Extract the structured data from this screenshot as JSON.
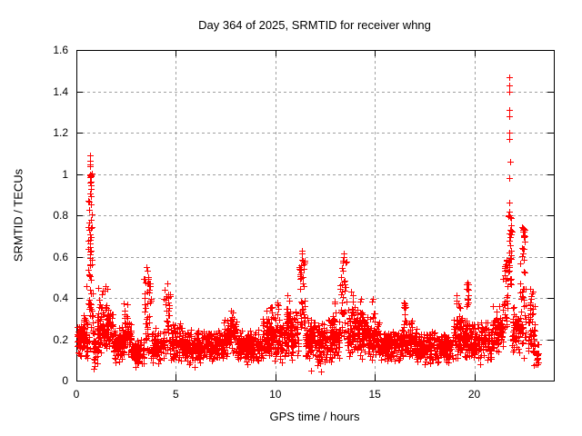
{
  "colors": {
    "marker": "#ff0000",
    "grid": "#a0a0a0",
    "axis": "#000000",
    "background": "#ffffff",
    "text": "#000000"
  },
  "chart_data": {
    "type": "scatter",
    "title": "Day 364 of 2025, SRMTID for receiver whng",
    "xlabel": "GPS time / hours",
    "ylabel": "SRMTID / TECUs",
    "xlim": [
      0,
      24
    ],
    "ylim": [
      0,
      1.6
    ],
    "xticks": [
      0,
      5,
      10,
      15,
      20
    ],
    "xtick_labels": [
      "0",
      "5",
      "10",
      "15",
      "20"
    ],
    "yticks": [
      0,
      0.2,
      0.4,
      0.6,
      0.8,
      1.0,
      1.2,
      1.4,
      1.6
    ],
    "ytick_labels": [
      "0",
      "0.2",
      "0.4",
      "0.6",
      "0.8",
      "1",
      "1.2",
      "1.4",
      "1.6"
    ],
    "grid": true,
    "legend": "none",
    "marker": "plus",
    "marker_size_px": 7,
    "seed": 1364,
    "peak_points": [
      [
        0.7,
        1.09
      ],
      [
        0.705,
        1.065
      ],
      [
        0.7,
        1.045
      ],
      [
        0.69,
        1.0
      ],
      [
        0.7,
        0.995
      ],
      [
        0.71,
        0.99
      ],
      [
        0.695,
        0.985
      ],
      [
        21.74,
        1.47
      ],
      [
        21.76,
        1.43
      ],
      [
        21.74,
        1.4
      ],
      [
        21.78,
        1.31
      ],
      [
        21.76,
        1.28
      ],
      [
        21.74,
        1.2
      ],
      [
        21.77,
        1.17
      ],
      [
        21.8,
        1.06
      ],
      [
        21.78,
        0.98
      ],
      [
        21.74,
        0.86
      ],
      [
        21.72,
        0.8
      ],
      [
        21.76,
        0.8
      ],
      [
        21.8,
        0.79
      ],
      [
        11.32,
        0.63
      ],
      [
        11.35,
        0.615
      ],
      [
        11.33,
        0.585
      ],
      [
        13.42,
        0.615
      ],
      [
        13.45,
        0.6
      ],
      [
        13.4,
        0.57
      ],
      [
        3.52,
        0.55
      ],
      [
        3.56,
        0.53
      ],
      [
        4.55,
        0.47
      ],
      [
        22.42,
        0.745
      ],
      [
        22.45,
        0.74
      ],
      [
        22.48,
        0.735
      ],
      [
        22.44,
        0.73
      ],
      [
        22.47,
        0.72
      ],
      [
        19.65,
        0.475
      ],
      [
        0.5,
        0.455
      ],
      [
        0.88,
        0.055
      ],
      [
        0.9,
        0.07
      ],
      [
        12.3,
        0.045
      ],
      [
        11.8,
        0.05
      ],
      [
        23.0,
        0.075
      ],
      [
        5.95,
        0.065
      ],
      [
        2.95,
        0.065
      ],
      [
        8.6,
        0.08
      ],
      [
        17.5,
        0.08
      ],
      [
        20.3,
        0.08
      ]
    ],
    "noise_bands": [
      [
        0.02,
        0.35,
        45,
        0.2,
        0.1
      ],
      [
        0.35,
        0.58,
        35,
        0.22,
        0.13
      ],
      [
        0.85,
        1.05,
        25,
        0.16,
        0.1
      ],
      [
        1.05,
        1.85,
        110,
        0.24,
        0.12
      ],
      [
        1.85,
        2.3,
        60,
        0.17,
        0.09
      ],
      [
        2.3,
        2.75,
        60,
        0.2,
        0.11
      ],
      [
        2.75,
        3.4,
        85,
        0.14,
        0.08
      ],
      [
        3.75,
        4.4,
        85,
        0.17,
        0.09
      ],
      [
        4.7,
        5.35,
        85,
        0.19,
        0.1
      ],
      [
        5.35,
        6.3,
        120,
        0.16,
        0.09
      ],
      [
        6.3,
        7.4,
        140,
        0.17,
        0.08
      ],
      [
        7.4,
        8.05,
        85,
        0.21,
        0.1
      ],
      [
        8.05,
        9.3,
        160,
        0.17,
        0.08
      ],
      [
        9.3,
        9.95,
        85,
        0.21,
        0.11
      ],
      [
        9.95,
        10.45,
        65,
        0.2,
        0.12
      ],
      [
        10.45,
        11.2,
        100,
        0.23,
        0.14
      ],
      [
        11.5,
        12.05,
        75,
        0.2,
        0.13
      ],
      [
        12.05,
        12.65,
        80,
        0.17,
        0.12
      ],
      [
        12.65,
        13.25,
        80,
        0.2,
        0.12
      ],
      [
        13.6,
        14.15,
        70,
        0.24,
        0.13
      ],
      [
        14.15,
        14.65,
        65,
        0.22,
        0.12
      ],
      [
        14.65,
        15.25,
        80,
        0.2,
        0.11
      ],
      [
        15.25,
        16.3,
        135,
        0.17,
        0.08
      ],
      [
        16.3,
        16.95,
        85,
        0.2,
        0.1
      ],
      [
        16.95,
        18.0,
        135,
        0.17,
        0.09
      ],
      [
        18.0,
        18.95,
        120,
        0.16,
        0.08
      ],
      [
        18.95,
        19.8,
        110,
        0.21,
        0.12
      ],
      [
        19.8,
        20.9,
        140,
        0.19,
        0.1
      ],
      [
        20.9,
        21.45,
        70,
        0.24,
        0.13
      ],
      [
        21.9,
        22.3,
        55,
        0.24,
        0.12
      ],
      [
        22.7,
        23.05,
        40,
        0.24,
        0.14
      ],
      [
        23.05,
        23.22,
        15,
        0.13,
        0.06
      ]
    ],
    "spike_columns": [
      [
        0.58,
        0.74,
        25,
        0.3,
        0.95
      ],
      [
        0.66,
        0.78,
        20,
        0.55,
        1.05
      ],
      [
        0.58,
        0.85,
        20,
        0.15,
        0.45
      ],
      [
        1.05,
        1.55,
        15,
        0.3,
        0.46
      ],
      [
        2.35,
        2.55,
        8,
        0.28,
        0.38
      ],
      [
        3.4,
        3.75,
        40,
        0.12,
        0.52
      ],
      [
        4.4,
        4.7,
        32,
        0.12,
        0.45
      ],
      [
        7.7,
        7.9,
        8,
        0.25,
        0.35
      ],
      [
        9.5,
        9.85,
        10,
        0.24,
        0.36
      ],
      [
        10.05,
        10.2,
        6,
        0.28,
        0.38
      ],
      [
        10.55,
        10.7,
        8,
        0.28,
        0.42
      ],
      [
        11.2,
        11.5,
        40,
        0.25,
        0.6
      ],
      [
        12.9,
        13.05,
        6,
        0.28,
        0.4
      ],
      [
        13.25,
        13.6,
        35,
        0.2,
        0.58
      ],
      [
        13.75,
        13.9,
        6,
        0.3,
        0.45
      ],
      [
        14.25,
        14.4,
        8,
        0.28,
        0.42
      ],
      [
        14.85,
        15.0,
        8,
        0.28,
        0.4
      ],
      [
        16.45,
        16.6,
        8,
        0.28,
        0.38
      ],
      [
        19.1,
        19.3,
        12,
        0.25,
        0.43
      ],
      [
        19.55,
        19.75,
        12,
        0.25,
        0.47
      ],
      [
        21.45,
        21.7,
        30,
        0.25,
        0.6
      ],
      [
        21.68,
        21.88,
        28,
        0.45,
        0.85
      ],
      [
        22.3,
        22.6,
        35,
        0.1,
        0.6
      ],
      [
        22.38,
        22.55,
        14,
        0.6,
        0.75
      ],
      [
        22.8,
        22.95,
        10,
        0.32,
        0.46
      ]
    ]
  }
}
